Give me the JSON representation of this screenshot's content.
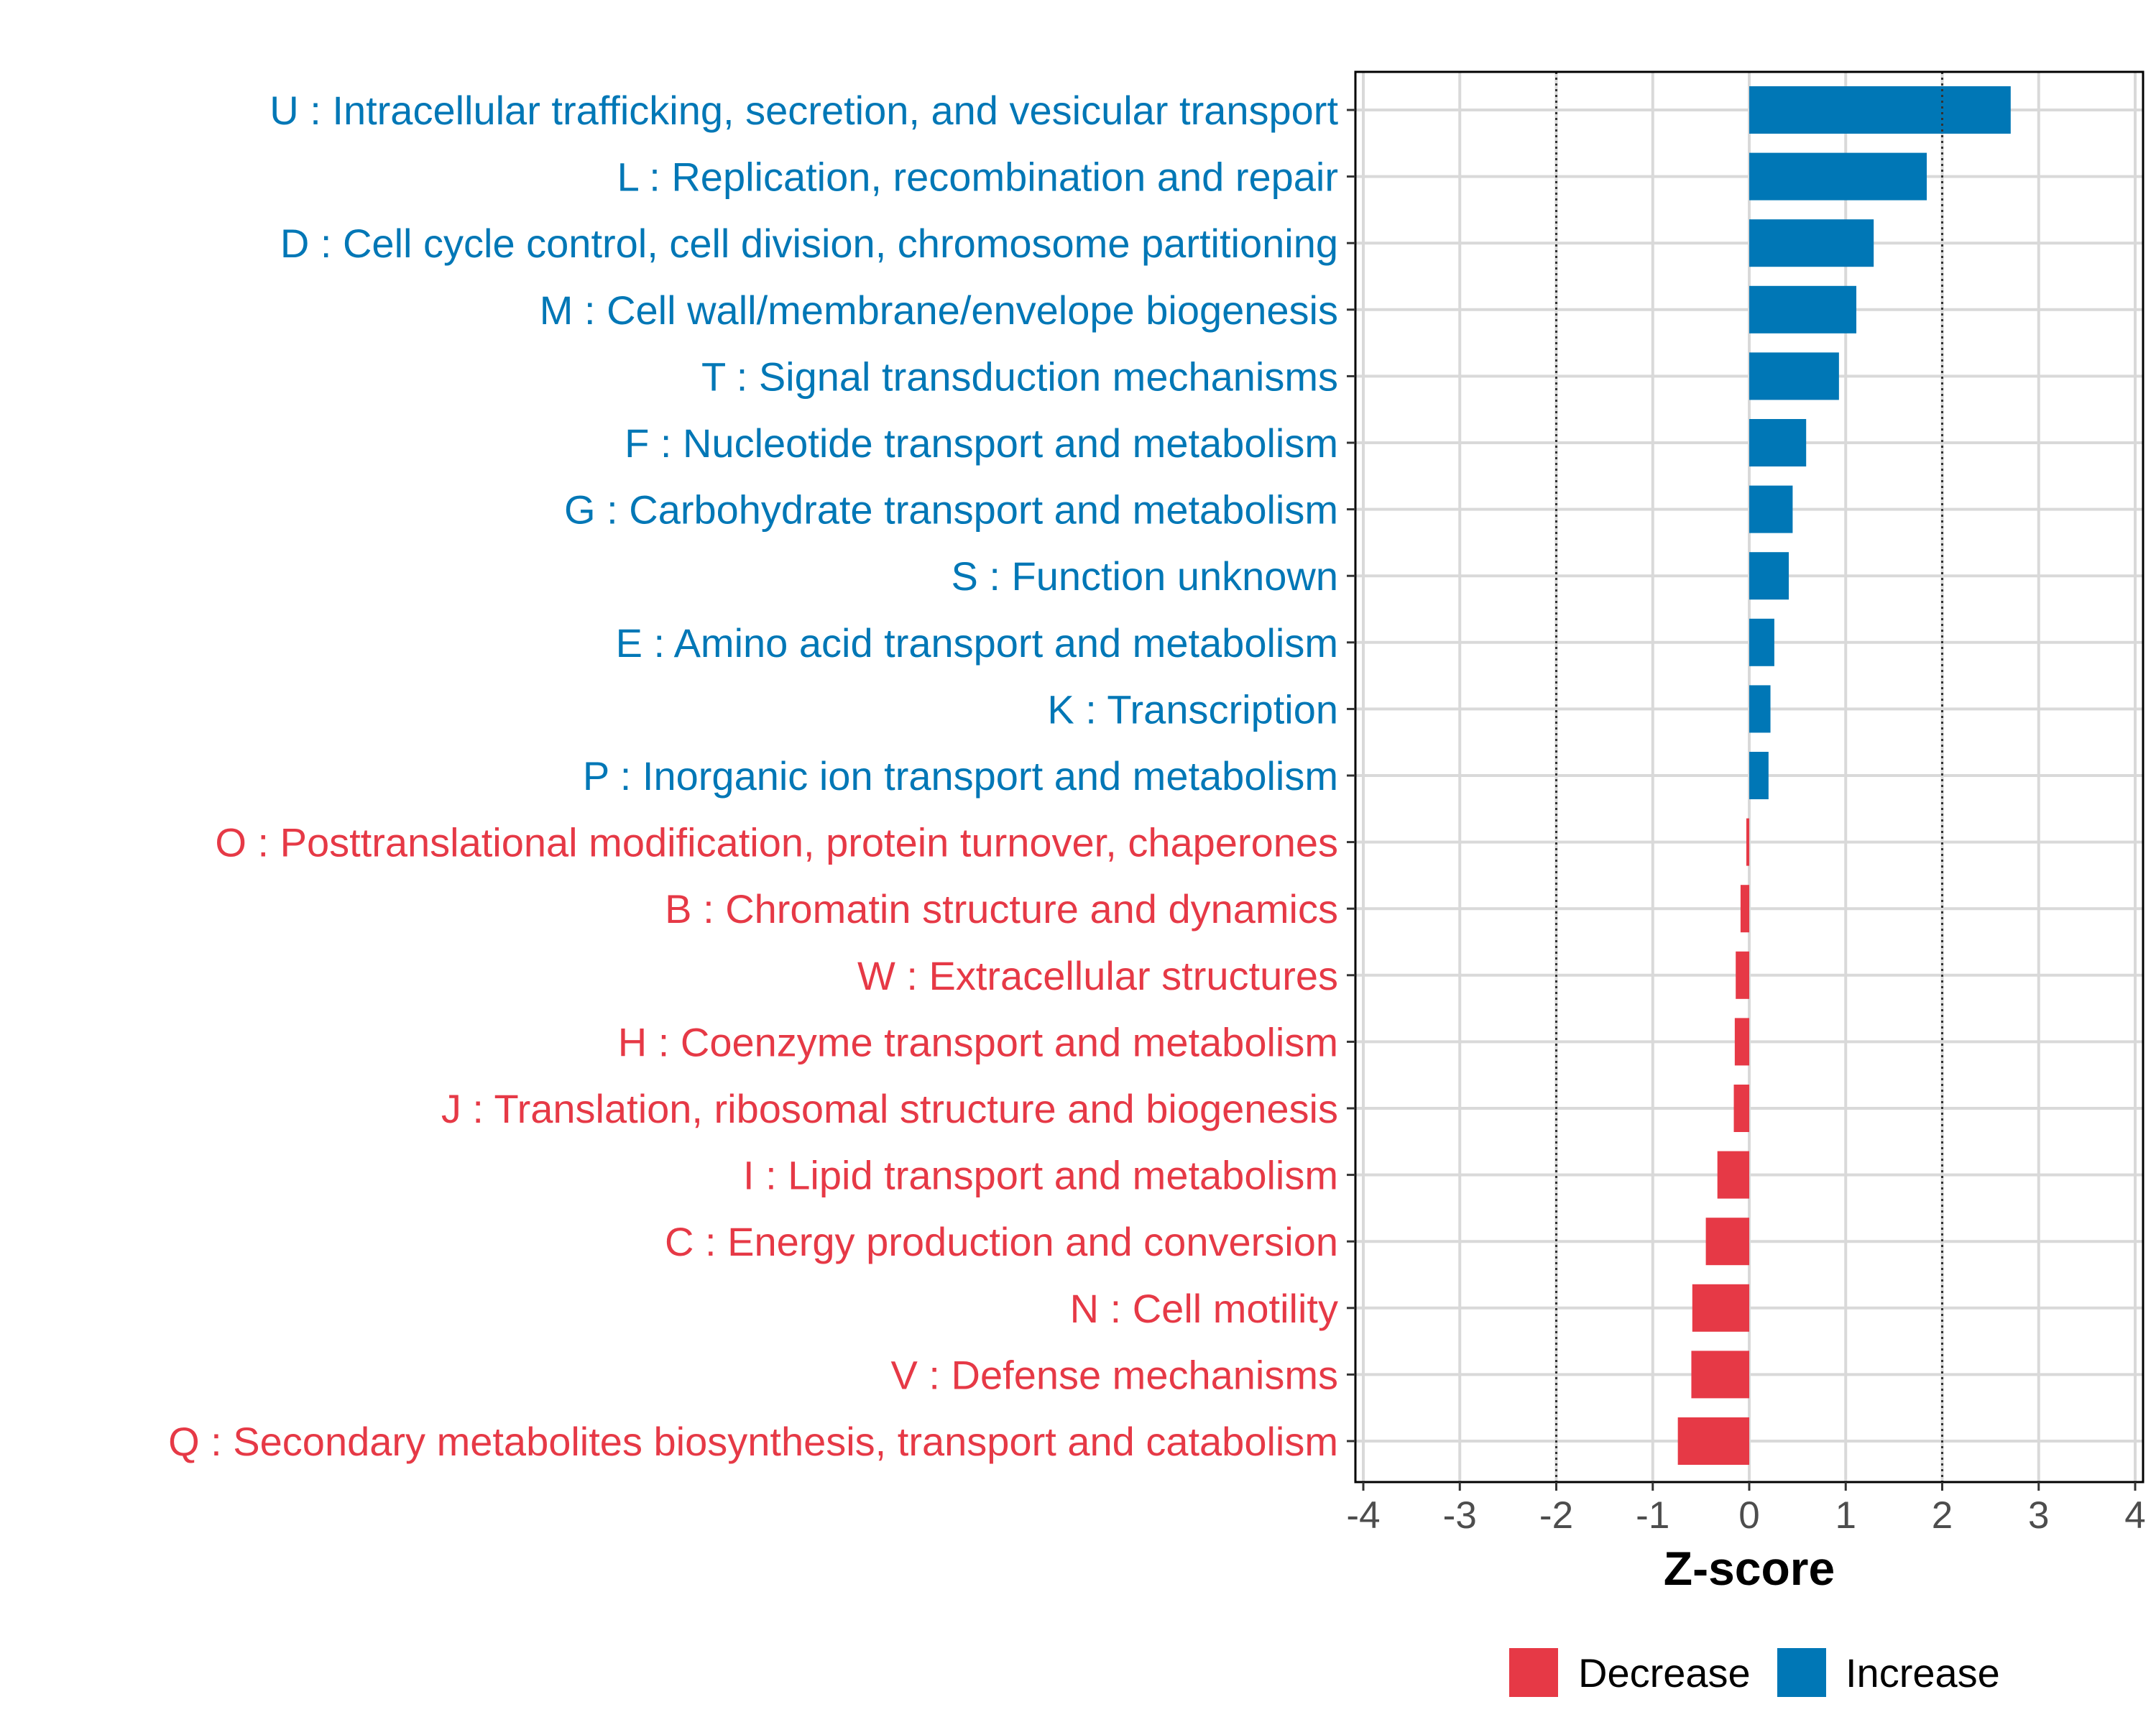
{
  "chart_data": {
    "type": "bar",
    "orientation": "horizontal",
    "title": "",
    "xlabel": "Z-score",
    "ylabel": "",
    "xlim": [
      -4,
      4
    ],
    "x_ticks": [
      "-4",
      "-3",
      "-2",
      "-1",
      "0",
      "1",
      "2",
      "3",
      "4"
    ],
    "reference_lines": [
      -2,
      2
    ],
    "grid": true,
    "categories": [
      "U : Intracellular trafficking, secretion, and vesicular transport",
      "L : Replication, recombination and repair",
      "D : Cell cycle control, cell division, chromosome partitioning",
      "M : Cell wall/membrane/envelope biogenesis",
      "T : Signal transduction mechanisms",
      "F : Nucleotide transport and metabolism",
      "G : Carbohydrate transport and metabolism",
      "S : Function unknown",
      "E : Amino acid transport and metabolism",
      "K : Transcription",
      "P : Inorganic ion transport and metabolism",
      "O : Posttranslational modification, protein turnover, chaperones",
      "B : Chromatin structure and dynamics",
      "W : Extracellular structures",
      "H : Coenzyme transport and metabolism",
      "J : Translation, ribosomal structure and biogenesis",
      "I : Lipid transport and metabolism",
      "C : Energy production and conversion",
      "N : Cell motility",
      "V : Defense mechanisms",
      "Q : Secondary metabolites biosynthesis, transport and catabolism"
    ],
    "values": [
      2.71,
      1.84,
      1.29,
      1.11,
      0.93,
      0.59,
      0.45,
      0.41,
      0.26,
      0.22,
      0.2,
      -0.03,
      -0.09,
      -0.14,
      -0.15,
      -0.16,
      -0.33,
      -0.45,
      -0.59,
      -0.6,
      -0.74
    ],
    "groups": [
      "Increase",
      "Increase",
      "Increase",
      "Increase",
      "Increase",
      "Increase",
      "Increase",
      "Increase",
      "Increase",
      "Increase",
      "Increase",
      "Decrease",
      "Decrease",
      "Decrease",
      "Decrease",
      "Decrease",
      "Decrease",
      "Decrease",
      "Decrease",
      "Decrease",
      "Decrease"
    ],
    "legend": {
      "position": "bottom",
      "items": [
        {
          "label": "Decrease",
          "color": "#e63946"
        },
        {
          "label": "Increase",
          "color": "#0077b6"
        }
      ]
    },
    "colors": {
      "Increase": "#0077b6",
      "Decrease": "#e63946"
    }
  }
}
